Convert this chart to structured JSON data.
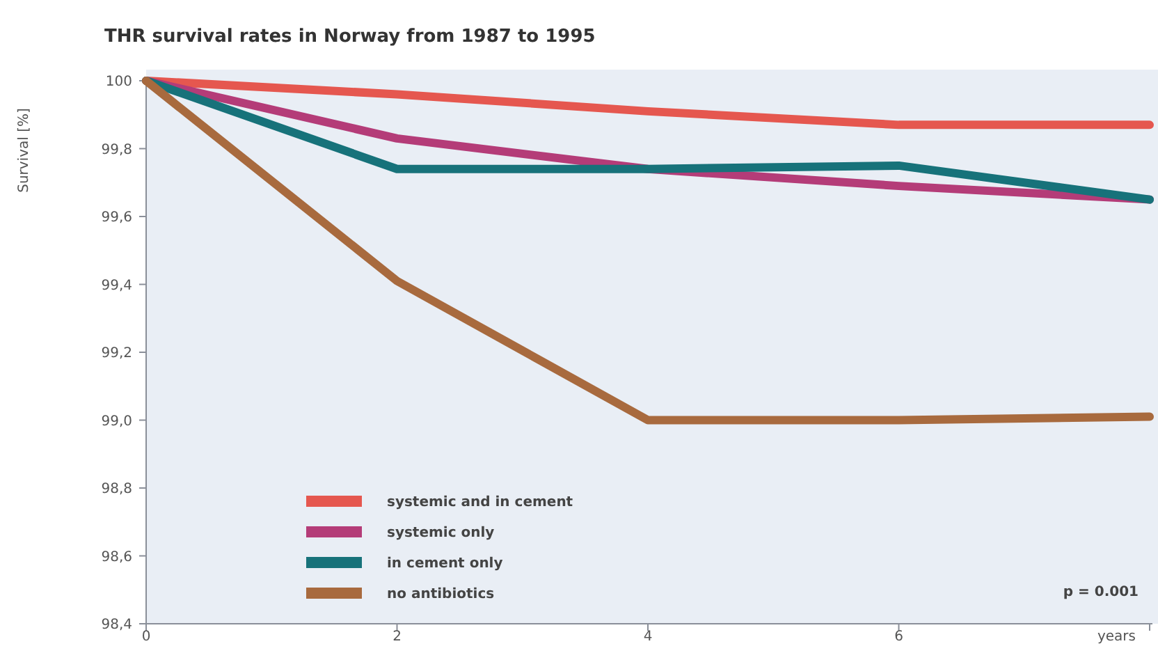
{
  "chart_data": {
    "type": "line",
    "title": "THR survival rates in Norway from 1987 to 1995",
    "xlabel": "years",
    "ylabel": "Survival [%]",
    "x": [
      0,
      2,
      4,
      6,
      8
    ],
    "series": [
      {
        "name": "systemic and in cement",
        "color": "#e5574f",
        "values": [
          100,
          99.96,
          99.91,
          99.87,
          99.87
        ]
      },
      {
        "name": "systemic only",
        "color": "#b43c78",
        "values": [
          100,
          99.83,
          99.74,
          99.69,
          99.65
        ]
      },
      {
        "name": "in cement only",
        "color": "#17727a",
        "values": [
          100,
          99.74,
          99.74,
          99.75,
          99.65
        ]
      },
      {
        "name": "no antibiotics",
        "color": "#a86a3e",
        "values": [
          100,
          99.41,
          99.0,
          99.0,
          99.01
        ]
      }
    ],
    "xlim": [
      0,
      8
    ],
    "xticks": [
      0,
      2,
      4,
      6,
      {
        "value": 8,
        "label": null
      }
    ],
    "ylim": [
      98.4,
      100
    ],
    "yticks": [
      {
        "value": 98.4,
        "label": "98,4"
      },
      {
        "value": 98.6,
        "label": "98,6"
      },
      {
        "value": 98.8,
        "label": "98,8"
      },
      {
        "value": 99,
        "label": "99,0"
      },
      {
        "value": 99.2,
        "label": "99,2"
      },
      {
        "value": 99.4,
        "label": "99,4"
      },
      {
        "value": 99.6,
        "label": "99,6"
      },
      {
        "value": 99.8,
        "label": "99,8"
      },
      {
        "value": 100,
        "label": "100"
      }
    ],
    "grid": false,
    "legend": "bottom left",
    "marker": "none",
    "line_style": "solid",
    "annotations": [
      "p = 0.001"
    ]
  }
}
